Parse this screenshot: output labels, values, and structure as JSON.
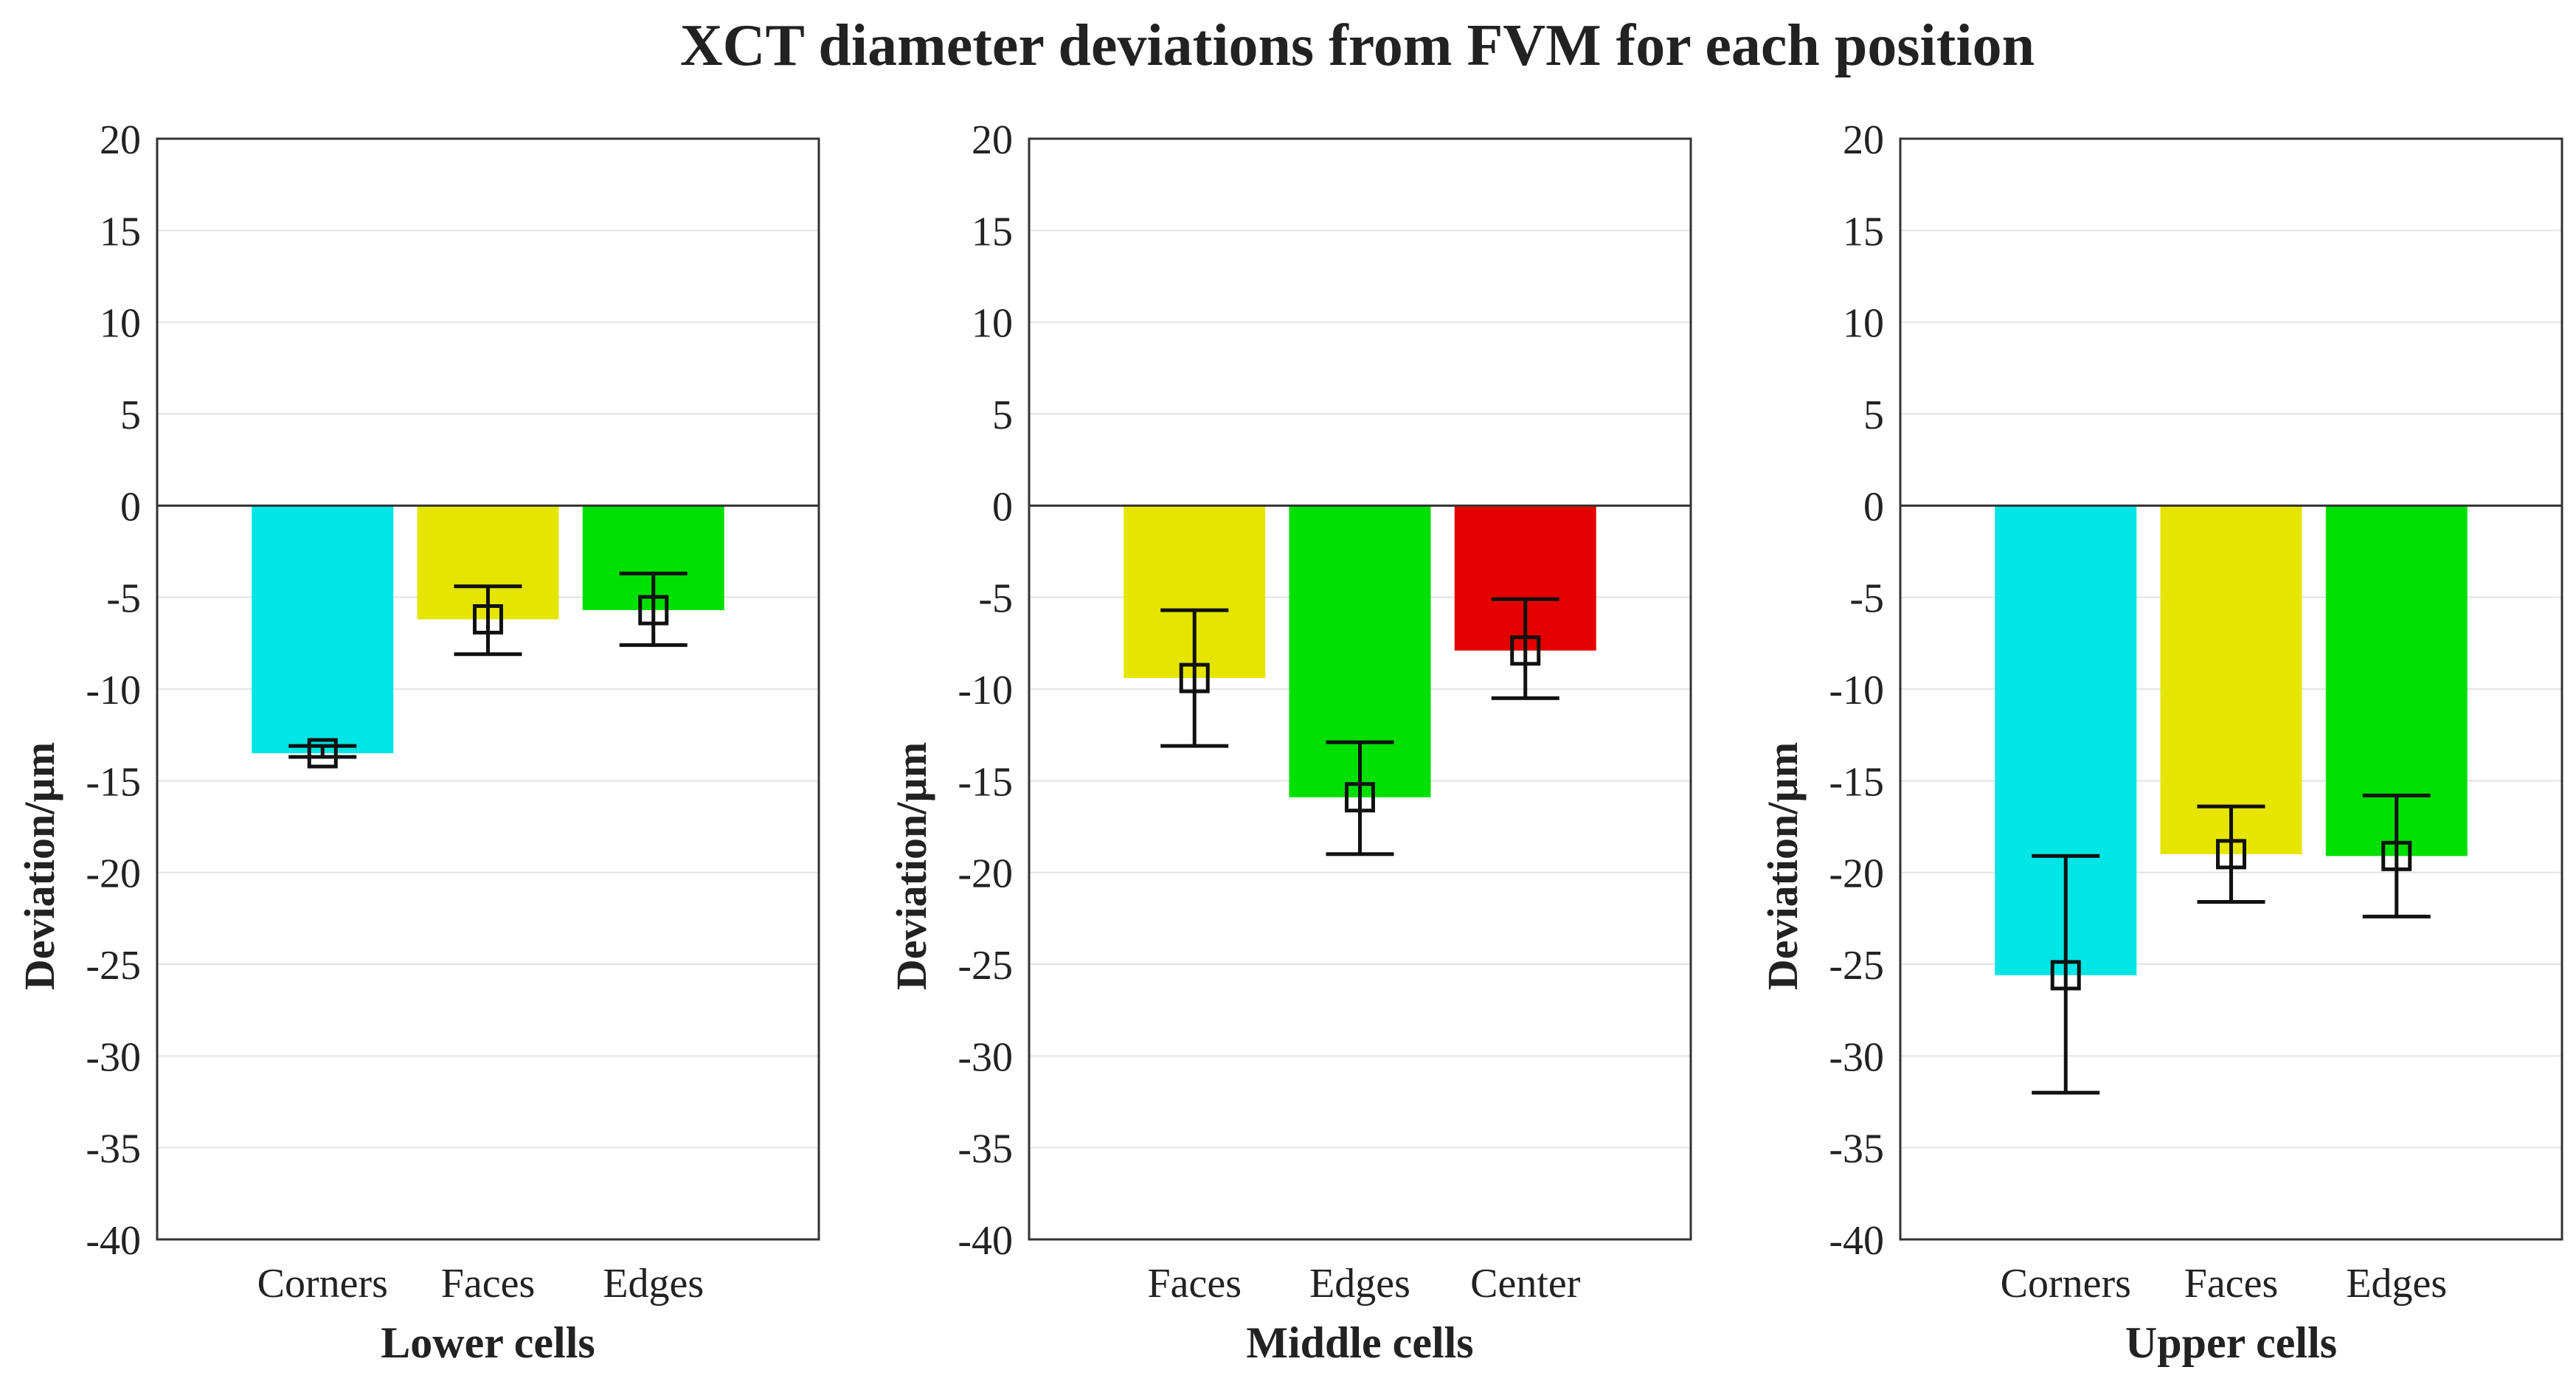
{
  "figure_title": "XCT diameter deviations from FVM for each position",
  "chart_data": [
    {
      "type": "bar",
      "xlabel": "Lower cells",
      "ylabel": "Deviation/µm",
      "ylim": [
        -40,
        20
      ],
      "yticks": [
        20,
        15,
        10,
        5,
        0,
        -5,
        -10,
        -15,
        -20,
        -25,
        -30,
        -35,
        -40
      ],
      "grid": true,
      "categories": [
        "Corners",
        "Faces",
        "Edges"
      ],
      "values": [
        -13.5,
        -6.2,
        -5.7
      ],
      "error_low": [
        -13.7,
        -8.1,
        -7.6
      ],
      "error_high": [
        -13.1,
        -4.4,
        -3.7
      ],
      "colors": [
        "#00e5e5",
        "#e5e500",
        "#00e000"
      ]
    },
    {
      "type": "bar",
      "xlabel": "Middle cells",
      "ylabel": "Deviation/µm",
      "ylim": [
        -40,
        20
      ],
      "yticks": [
        20,
        15,
        10,
        5,
        0,
        -5,
        -10,
        -15,
        -20,
        -25,
        -30,
        -35,
        -40
      ],
      "grid": true,
      "categories": [
        "Faces",
        "Edges",
        "Center"
      ],
      "values": [
        -9.4,
        -15.9,
        -7.9
      ],
      "error_low": [
        -13.1,
        -19.0,
        -10.5
      ],
      "error_high": [
        -5.7,
        -12.9,
        -5.1
      ],
      "colors": [
        "#e5e500",
        "#00e000",
        "#e50000"
      ]
    },
    {
      "type": "bar",
      "xlabel": "Upper cells",
      "ylabel": "Deviation/µm",
      "ylim": [
        -40,
        20
      ],
      "yticks": [
        20,
        15,
        10,
        5,
        0,
        -5,
        -10,
        -15,
        -20,
        -25,
        -30,
        -35,
        -40
      ],
      "grid": true,
      "categories": [
        "Corners",
        "Faces",
        "Edges"
      ],
      "values": [
        -25.6,
        -19.0,
        -19.1
      ],
      "error_low": [
        -32.0,
        -21.6,
        -22.4
      ],
      "error_high": [
        -19.1,
        -16.4,
        -15.8
      ],
      "colors": [
        "#00e5e5",
        "#e5e500",
        "#00e000"
      ]
    }
  ]
}
